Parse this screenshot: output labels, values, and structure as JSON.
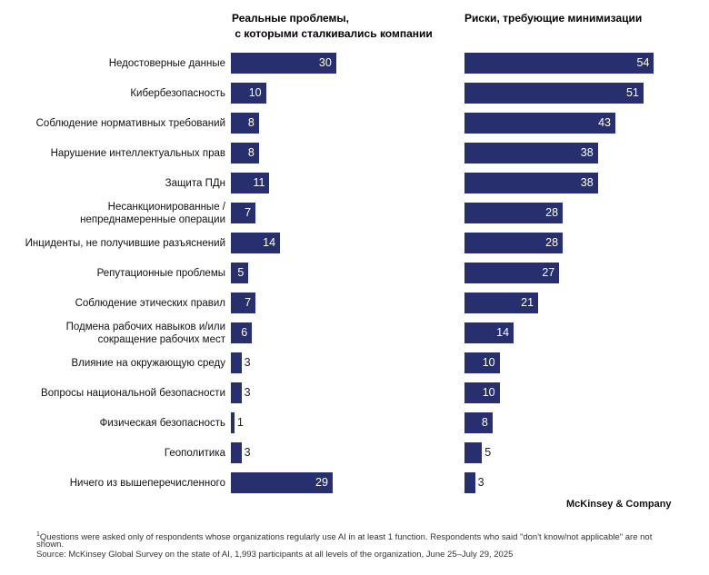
{
  "chart_data": [
    {
      "type": "bar",
      "orientation": "horizontal",
      "title": "Реальные проблемы,\n с которыми сталкивались компании",
      "categories": [
        "Недостоверные данные",
        "Кибербезопасность",
        "Соблюдение нормативных требований",
        "Нарушение интеллектуальных прав",
        "Защита ПДн",
        "Несанкционированные / непреднамеренные операции",
        "Инциденты, не получившие разъяснений",
        "Репутационные проблемы",
        "Соблюдение этических правил",
        "Подмена рабочих навыков и/или сокращение рабочих мест",
        "Влияние на окружающую среду",
        "Вопросы национальной безопасности",
        "Физическая безопасность",
        "Геополитика",
        "Ничего из вышеперечисленного"
      ],
      "values": [
        30,
        10,
        8,
        8,
        11,
        7,
        14,
        5,
        7,
        6,
        3,
        3,
        1,
        3,
        29
      ],
      "unit": "%",
      "color": "#282f6e"
    },
    {
      "type": "bar",
      "orientation": "horizontal",
      "title": "Риски, требующие минимизации",
      "categories": [
        "Недостоверные данные",
        "Кибербезопасность",
        "Соблюдение нормативных требований",
        "Нарушение интеллектуальных прав",
        "Защита ПДн",
        "Несанкционированные / непреднамеренные операции",
        "Инциденты, не получившие разъяснений",
        "Репутационные проблемы",
        "Соблюдение этических правил",
        "Подмена рабочих навыков и/или сокращение рабочих мест",
        "Влияние на окружающую среду",
        "Вопросы национальной безопасности",
        "Физическая безопасность",
        "Геополитика",
        "Ничего из вышеперечисленного"
      ],
      "values": [
        54,
        51,
        43,
        38,
        38,
        28,
        28,
        27,
        21,
        14,
        10,
        10,
        8,
        5,
        3
      ],
      "unit": "%",
      "color": "#282f6e"
    }
  ],
  "category_labels": [
    [
      "Недостоверные данные"
    ],
    [
      "Кибербезопасность"
    ],
    [
      "Соблюдение нормативных требований"
    ],
    [
      "Нарушение интеллектуальных прав"
    ],
    [
      "Защита ПДн"
    ],
    [
      "Несанкционированные /",
      "непреднамеренные операции"
    ],
    [
      "Инциденты, не получившие разъяснений"
    ],
    [
      "Репутационные проблемы"
    ],
    [
      "Соблюдение этических правил"
    ],
    [
      "Подмена рабочих навыков и/или",
      "сокращение рабочих мест"
    ],
    [
      "Влияние на окружающую среду"
    ],
    [
      "Вопросы национальной безопасности"
    ],
    [
      "Физическая безопасность"
    ],
    [
      "Геополитика"
    ],
    [
      "Ничего из вышеперечисленного"
    ]
  ],
  "headers": {
    "left_line1": "Реальные проблемы,",
    "left_line2": " с которыми сталкивались компании",
    "right": "Риски, требующие минимизации"
  },
  "brand": "McKinsey & Company",
  "footnote": {
    "marker": "1",
    "line1": "Questions were asked only of respondents whose organizations regularly use AI in at least 1 function. Respondents who said \"don't know/not applicable\" are not",
    "line2": "shown.",
    "source": "Source: McKinsey Global Survey on the state of AI, 1,993 participants at all levels of the organization, June 25–July 29, 2025"
  }
}
